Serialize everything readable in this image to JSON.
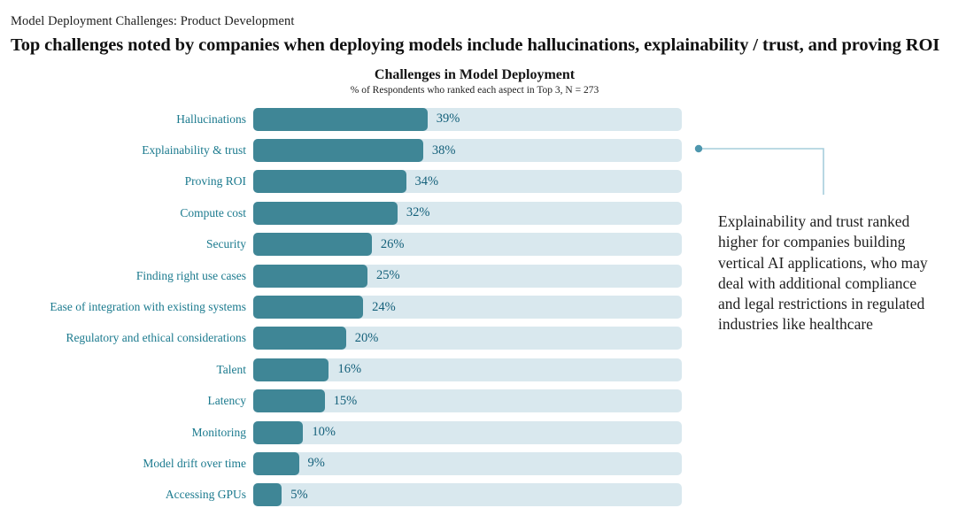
{
  "header": {
    "eyebrow": "Model Deployment Challenges: Product Development",
    "title": "Top challenges noted by companies when deploying models include hallucinations, explainability / trust, and proving ROI"
  },
  "chart": {
    "title": "Challenges in Model Deployment",
    "subtitle": "% of Respondents who ranked each aspect in Top 3, N = 273"
  },
  "chart_data": {
    "type": "bar",
    "orientation": "horizontal",
    "title": "Challenges in Model Deployment",
    "subtitle": "% of Respondents who ranked each aspect in Top 3, N = 273",
    "sample_size": 273,
    "categories": [
      "Hallucinations",
      "Explainability & trust",
      "Proving ROI",
      "Compute cost",
      "Security",
      "Finding right use cases",
      "Ease of integration with existing systems",
      "Regulatory and ethical considerations",
      "Talent",
      "Latency",
      "Monitoring",
      "Model drift over time",
      "Accessing GPUs"
    ],
    "values": [
      39,
      38,
      34,
      32,
      26,
      25,
      24,
      20,
      16,
      15,
      10,
      9,
      5
    ],
    "value_labels": [
      "39%",
      "38%",
      "34%",
      "32%",
      "26%",
      "25%",
      "24%",
      "20%",
      "16%",
      "15%",
      "10%",
      "9%",
      "5%"
    ],
    "xlim": [
      0,
      100
    ],
    "grid": false,
    "legend": false
  },
  "annotation": {
    "text": "Explainability and trust ranked higher for companies building vertical AI applications, who may deal with additional compliance and legal restrictions in regulated industries like healthcare",
    "target_category": "Explainability & trust",
    "target_index": 1
  },
  "colors": {
    "bar_fill": "#3f8696",
    "bar_track": "#d9e8ee",
    "category_label": "#1b7a8e",
    "value_label": "#14607a",
    "connector_line": "#a6cddc",
    "connector_dot": "#4e97ae",
    "heading_text": "#111111",
    "annotation_text": "#1e1e1e"
  }
}
